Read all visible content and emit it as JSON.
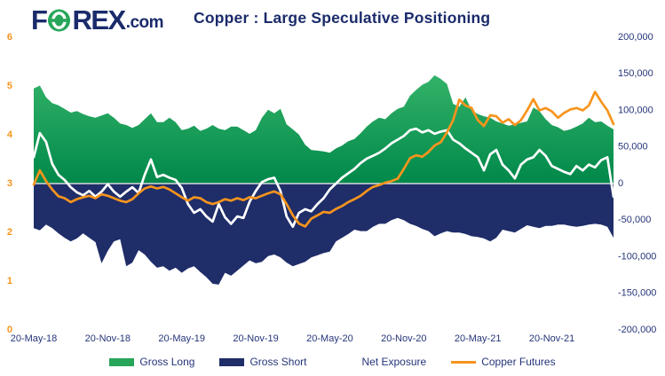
{
  "header": {
    "logo": {
      "part1": "F",
      "part2": "REX",
      "suffix": ".com"
    },
    "title": "Copper : Large Speculative Positioning"
  },
  "colors": {
    "navy_text": "#25357a",
    "navy_dark": "#1a2b6b",
    "navy_fill": "#1f2d69",
    "green_legend": "#27a65a",
    "green_grad_top": "#45c173",
    "green_grad_bottom": "#00884a",
    "orange": "#f7941d",
    "white": "#ffffff",
    "zero_line": "#d8dbe0"
  },
  "chart_data": {
    "type": "area+line",
    "title": "Copper : Large Speculative Positioning",
    "x_tick_labels": [
      "20-May-18",
      "20-Nov-18",
      "20-May-19",
      "20-Nov-19",
      "20-May-20",
      "20-Nov-20",
      "20-May-21",
      "20-Nov-21"
    ],
    "x_tick_indices": [
      0,
      12,
      24,
      36,
      48,
      60,
      72,
      84
    ],
    "left_axis": {
      "ticks": [
        "6",
        "5",
        "4",
        "3",
        "2",
        "1",
        "0"
      ],
      "min": 0,
      "max": 6
    },
    "right_axis": {
      "ticks": [
        "200,000",
        "150,000",
        "100,000",
        "50,000",
        "0",
        "-50,000",
        "-100,000",
        "-150,000",
        "-200,000"
      ],
      "min": -200000,
      "max": 200000
    },
    "grid": "zero-line-only",
    "legend_position": "bottom",
    "series": [
      {
        "name": "Gross Long",
        "type": "area",
        "axis": "right",
        "values": [
          130000,
          134000,
          118000,
          110000,
          107000,
          102000,
          97000,
          99000,
          95000,
          92000,
          90000,
          93000,
          96000,
          90000,
          82000,
          80000,
          76000,
          80000,
          88000,
          96000,
          84000,
          84000,
          90000,
          84000,
          73000,
          75000,
          79000,
          72000,
          75000,
          80000,
          75000,
          73000,
          78000,
          78000,
          73000,
          68000,
          73000,
          90000,
          101000,
          96000,
          102000,
          81000,
          74000,
          67000,
          53000,
          46000,
          45000,
          44000,
          42000,
          48000,
          52000,
          58000,
          61000,
          69000,
          78000,
          85000,
          90000,
          88000,
          96000,
          102000,
          105000,
          120000,
          128000,
          135000,
          139000,
          148000,
          143000,
          136000,
          109000,
          105000,
          118000,
          100000,
          95000,
          92000,
          90000,
          85000,
          82000,
          79000,
          81000,
          83000,
          85000,
          104000,
          99000,
          88000,
          80000,
          77000,
          72000,
          74000,
          78000,
          82000,
          90000,
          84000,
          85000,
          79000,
          74000
        ]
      },
      {
        "name": "Gross Short",
        "type": "area",
        "axis": "right",
        "values": [
          -61000,
          -64000,
          -56000,
          -61000,
          -68000,
          -74000,
          -79000,
          -75000,
          -68000,
          -74000,
          -80000,
          -109000,
          -92000,
          -79000,
          -76000,
          -113000,
          -108000,
          -91000,
          -97000,
          -107000,
          -115000,
          -113000,
          -119000,
          -115000,
          -122000,
          -116000,
          -113000,
          -121000,
          -128000,
          -137000,
          -138000,
          -122000,
          -126000,
          -119000,
          -112000,
          -105000,
          -109000,
          -107000,
          -99000,
          -97000,
          -101000,
          -108000,
          -113000,
          -110000,
          -107000,
          -101000,
          -98000,
          -95000,
          -93000,
          -79000,
          -74000,
          -69000,
          -63000,
          -65000,
          -65000,
          -59000,
          -55000,
          -55000,
          -50000,
          -47000,
          -50000,
          -55000,
          -58000,
          -62000,
          -65000,
          -72000,
          -68000,
          -65000,
          -67000,
          -67000,
          -69000,
          -72000,
          -73000,
          -75000,
          -79000,
          -74000,
          -63000,
          -65000,
          -67000,
          -62000,
          -57000,
          -59000,
          -61000,
          -58000,
          -58000,
          -56000,
          -56000,
          -58000,
          -59000,
          -58000,
          -56000,
          -55000,
          -56000,
          -59000,
          -74000
        ]
      },
      {
        "name": "Net Exposure",
        "type": "line",
        "axis": "right",
        "values": [
          36000,
          69000,
          57000,
          27000,
          12000,
          5000,
          -5000,
          -12000,
          -16000,
          -10000,
          -18000,
          -11000,
          -1000,
          -11000,
          -18000,
          -11000,
          -5000,
          -13000,
          12000,
          33000,
          9000,
          12000,
          8000,
          5000,
          -6000,
          -28000,
          -40000,
          -35000,
          -45000,
          -52000,
          -28000,
          -46000,
          -55000,
          -45000,
          -47000,
          -25000,
          -10000,
          2000,
          6000,
          8000,
          -10000,
          -45000,
          -59000,
          -40000,
          -35000,
          -38000,
          -28000,
          -20000,
          -8000,
          0,
          8000,
          14000,
          20000,
          28000,
          34000,
          38000,
          42000,
          48000,
          55000,
          60000,
          65000,
          73000,
          75000,
          70000,
          73000,
          68000,
          71000,
          73000,
          60000,
          55000,
          48000,
          42000,
          36000,
          18000,
          40000,
          46000,
          26000,
          18000,
          7000,
          26000,
          33000,
          36000,
          46000,
          38000,
          24000,
          20000,
          16000,
          13000,
          24000,
          18000,
          26000,
          22000,
          32000,
          36000,
          -18000
        ]
      },
      {
        "name": "Copper Futures",
        "type": "line",
        "axis": "left",
        "values": [
          2.98,
          3.27,
          3.05,
          2.88,
          2.74,
          2.7,
          2.62,
          2.68,
          2.72,
          2.75,
          2.7,
          2.78,
          2.75,
          2.7,
          2.65,
          2.62,
          2.68,
          2.8,
          2.9,
          2.94,
          2.9,
          2.93,
          2.88,
          2.8,
          2.72,
          2.65,
          2.72,
          2.7,
          2.62,
          2.58,
          2.62,
          2.68,
          2.65,
          2.7,
          2.66,
          2.72,
          2.7,
          2.75,
          2.8,
          2.84,
          2.78,
          2.58,
          2.35,
          2.18,
          2.12,
          2.28,
          2.35,
          2.42,
          2.4,
          2.48,
          2.54,
          2.62,
          2.68,
          2.75,
          2.85,
          2.93,
          2.97,
          3.02,
          3.05,
          3.1,
          3.3,
          3.52,
          3.58,
          3.55,
          3.65,
          3.78,
          3.85,
          4.05,
          4.3,
          4.72,
          4.6,
          4.55,
          4.3,
          4.18,
          4.4,
          4.38,
          4.25,
          4.32,
          4.2,
          4.3,
          4.5,
          4.73,
          4.5,
          4.55,
          4.48,
          4.35,
          4.45,
          4.52,
          4.55,
          4.5,
          4.6,
          4.88,
          4.68,
          4.5,
          4.22
        ]
      }
    ]
  },
  "legend": {
    "items": [
      {
        "label": "Gross Long",
        "swatch": "area",
        "color": "#27a65a"
      },
      {
        "label": "Gross Short",
        "swatch": "area",
        "color": "#1f2d69"
      },
      {
        "label": "Net Exposure",
        "swatch": "line",
        "color": "#ffffff"
      },
      {
        "label": "Copper Futures",
        "swatch": "line",
        "color": "#f7941d"
      }
    ]
  }
}
